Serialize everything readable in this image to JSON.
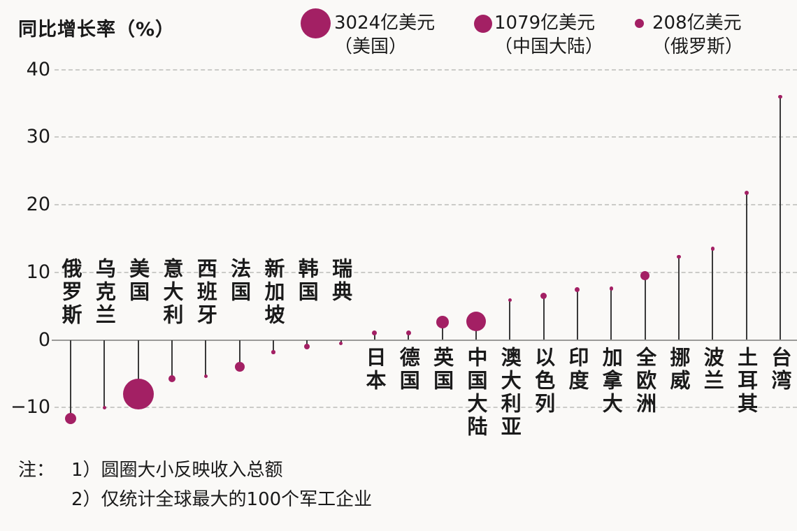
{
  "title": "同比增长率（%）",
  "legend": {
    "items": [
      {
        "value": "3024亿美元",
        "region": "（美国）",
        "size": "large"
      },
      {
        "value": "1079亿美元",
        "region": "（中国大陆）",
        "size": "medium"
      },
      {
        "value": "208亿美元",
        "region": "（俄罗斯）",
        "size": "small"
      }
    ]
  },
  "notes": {
    "prefix": "注：",
    "lines": [
      "1）圆圈大小反映收入总额",
      "2）仅统计全球最大的100个军工企业"
    ]
  },
  "chart_data": {
    "type": "scatter",
    "subtype": "lollipop-bubble",
    "title": "同比增长率（%）",
    "ylabel": "同比增长率（%）",
    "ylim": [
      -13,
      42
    ],
    "grid": "horizontal-dashed",
    "legend_position": "top",
    "bubble_meaning": "圆圈大小反映收入总额",
    "yticks": [
      {
        "v": 40,
        "label": "40"
      },
      {
        "v": 30,
        "label": "30"
      },
      {
        "v": 20,
        "label": "20"
      },
      {
        "v": 10,
        "label": "10"
      },
      {
        "v": 0,
        "label": "0"
      },
      {
        "v": -10,
        "label": "−10"
      }
    ],
    "categories": [
      "俄罗斯",
      "乌克兰",
      "美国",
      "意大利",
      "西班牙",
      "法国",
      "新加坡",
      "韩国",
      "瑞典",
      "日本",
      "德国",
      "英国",
      "中国大陆",
      "澳大利亚",
      "以色列",
      "印度",
      "加拿大",
      "全欧洲",
      "挪威",
      "波兰",
      "土耳其",
      "台湾"
    ],
    "values": [
      -11.6,
      -10,
      -8,
      -5.7,
      -5.4,
      -4,
      -1.8,
      -1,
      -0.5,
      1,
      1,
      2.6,
      2.7,
      5.9,
      6.5,
      7.4,
      7.6,
      9.5,
      12.3,
      13.5,
      21.8,
      36
    ],
    "dot_radius_px": [
      8,
      2.7,
      22,
      5,
      2.7,
      7,
      2.7,
      4,
      2.7,
      3.5,
      3.5,
      9,
      14,
      2.7,
      4.5,
      3.5,
      2.7,
      6.5,
      2.7,
      2.7,
      3,
      2.7
    ],
    "dot_color": "#a32064",
    "stem_color": "#3a3a3a"
  }
}
